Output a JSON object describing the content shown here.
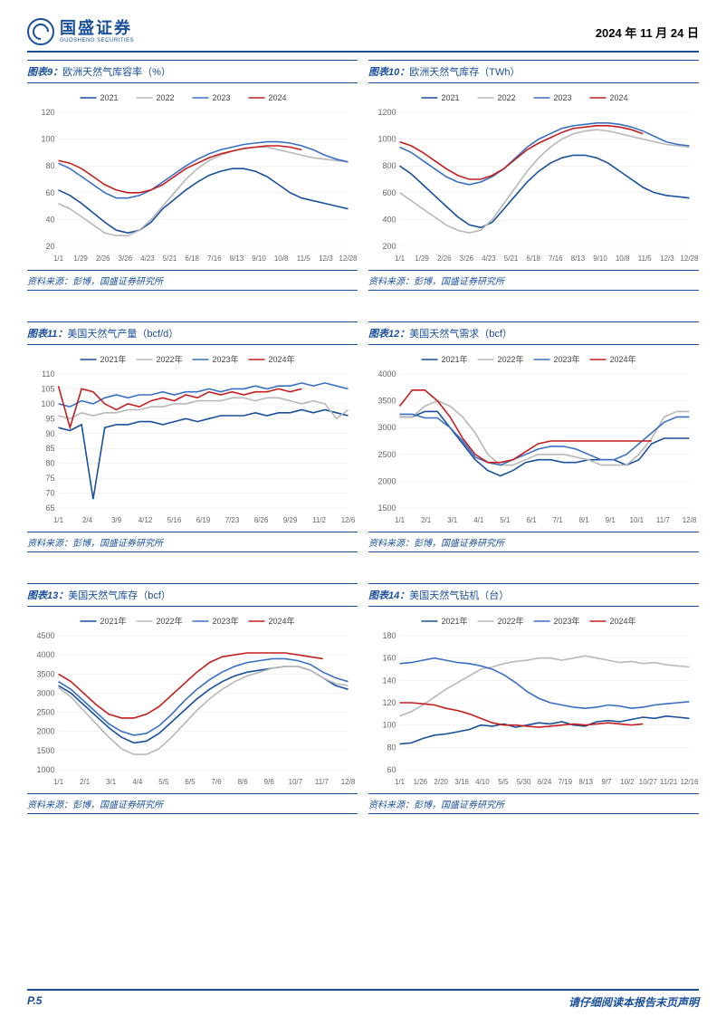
{
  "header": {
    "company_cn": "国盛证券",
    "company_en": "GUOSHENG SECURITIES",
    "date": "2024 年 11 月 24 日"
  },
  "colors": {
    "brand": "#1a4f9c",
    "c2021": "#1a4f9c",
    "c2022": "#b8b8b8",
    "c2023": "#3b6fc4",
    "c2024": "#c41e1e",
    "grid": "#e8e8e8",
    "axis": "#666666"
  },
  "source_text": "资料来源：彭博，国盛证券研究所",
  "charts": [
    {
      "id": "c9",
      "title_num": "图表9：",
      "title_rest": "欧洲天然气库容率（%）",
      "legend": [
        "2021",
        "2022",
        "2023",
        "2024"
      ],
      "ymin": 20,
      "ymax": 120,
      "ystep": 20,
      "xticks": [
        "1/1",
        "1/29",
        "2/26",
        "3/26",
        "4/23",
        "5/21",
        "6/18",
        "7/16",
        "8/13",
        "9/10",
        "10/8",
        "11/5",
        "12/3",
        "12/28"
      ],
      "series": {
        "2021": [
          62,
          58,
          52,
          45,
          38,
          32,
          30,
          32,
          38,
          48,
          55,
          62,
          68,
          73,
          76,
          78,
          78,
          76,
          72,
          66,
          60,
          56,
          54,
          52,
          50,
          48
        ],
        "2022": [
          52,
          48,
          42,
          36,
          30,
          28,
          28,
          32,
          40,
          50,
          60,
          70,
          78,
          84,
          88,
          91,
          93,
          94,
          94,
          92,
          90,
          88,
          86,
          85,
          84,
          83
        ],
        "2023": [
          82,
          78,
          72,
          66,
          60,
          56,
          56,
          58,
          62,
          68,
          74,
          80,
          85,
          89,
          92,
          94,
          96,
          97,
          98,
          98,
          97,
          95,
          92,
          88,
          85,
          83
        ],
        "2024": [
          84,
          82,
          78,
          72,
          66,
          62,
          60,
          60,
          62,
          66,
          72,
          78,
          82,
          86,
          89,
          91,
          93,
          94,
          95,
          95,
          94,
          92
        ]
      }
    },
    {
      "id": "c10",
      "title_num": "图表10：",
      "title_rest": "欧洲天然气库存（TWh）",
      "legend": [
        "2021",
        "2022",
        "2023",
        "2024"
      ],
      "ymin": 200,
      "ymax": 1200,
      "ystep": 200,
      "xticks": [
        "1/1",
        "1/29",
        "2/26",
        "3/26",
        "4/23",
        "5/21",
        "6/18",
        "7/16",
        "8/13",
        "9/10",
        "10/8",
        "11/5",
        "12/3",
        "12/28"
      ],
      "series": {
        "2021": [
          800,
          740,
          660,
          580,
          500,
          420,
          360,
          340,
          380,
          480,
          580,
          680,
          760,
          820,
          860,
          880,
          880,
          860,
          820,
          760,
          700,
          640,
          600,
          580,
          570,
          560
        ],
        "2022": [
          600,
          540,
          480,
          420,
          360,
          320,
          300,
          320,
          400,
          520,
          640,
          760,
          860,
          940,
          1000,
          1040,
          1060,
          1070,
          1060,
          1040,
          1020,
          1000,
          980,
          960,
          950,
          940
        ],
        "2023": [
          940,
          900,
          840,
          780,
          720,
          680,
          660,
          680,
          720,
          780,
          860,
          940,
          1000,
          1040,
          1080,
          1100,
          1110,
          1120,
          1120,
          1110,
          1090,
          1060,
          1020,
          980,
          960,
          950
        ],
        "2024": [
          980,
          950,
          900,
          840,
          780,
          730,
          700,
          700,
          730,
          780,
          850,
          920,
          970,
          1010,
          1050,
          1080,
          1090,
          1100,
          1100,
          1090,
          1070,
          1040
        ]
      }
    },
    {
      "id": "c11",
      "title_num": "图表11：",
      "title_rest": "美国天然气产量（bcf/d）",
      "legend": [
        "2021年",
        "2022年",
        "2023年",
        "2024年"
      ],
      "ymin": 65,
      "ymax": 110,
      "ystep": 5,
      "xticks": [
        "1/1",
        "2/4",
        "3/9",
        "4/12",
        "5/16",
        "6/19",
        "7/23",
        "8/26",
        "9/29",
        "11/2",
        "12/6"
      ],
      "series": {
        "2021": [
          92,
          91,
          93,
          68,
          92,
          93,
          93,
          94,
          94,
          93,
          94,
          95,
          94,
          95,
          96,
          96,
          96,
          97,
          96,
          97,
          97,
          98,
          97,
          98,
          97,
          96
        ],
        "2022": [
          96,
          95,
          97,
          96,
          97,
          97,
          98,
          98,
          99,
          99,
          100,
          100,
          101,
          101,
          101,
          102,
          102,
          101,
          102,
          102,
          101,
          100,
          101,
          100,
          95,
          98
        ],
        "2023": [
          100,
          99,
          101,
          100,
          102,
          103,
          102,
          103,
          103,
          104,
          103,
          104,
          104,
          105,
          104,
          105,
          105,
          106,
          105,
          106,
          106,
          107,
          106,
          107,
          106,
          105
        ],
        "2024": [
          106,
          92,
          105,
          104,
          100,
          98,
          100,
          99,
          101,
          102,
          101,
          103,
          102,
          104,
          103,
          104,
          103,
          104,
          104,
          105,
          104,
          105
        ]
      }
    },
    {
      "id": "c12",
      "title_num": "图表12：",
      "title_rest": "美国天然气需求（bcf）",
      "legend": [
        "2021年",
        "2022年",
        "2023年",
        "2024年"
      ],
      "ymin": 1500,
      "ymax": 4000,
      "ystep": 500,
      "xticks": [
        "1/1",
        "2/1",
        "3/1",
        "4/1",
        "5/1",
        "6/1",
        "7/1",
        "8/1",
        "9/1",
        "10/1",
        "11/7",
        "12/8"
      ],
      "series": {
        "2021": [
          3200,
          3200,
          3300,
          3300,
          3000,
          2700,
          2400,
          2200,
          2100,
          2200,
          2350,
          2400,
          2400,
          2350,
          2350,
          2400,
          2400,
          2400,
          2300,
          2400,
          2700,
          2800,
          2800,
          2800
        ],
        "2022": [
          3200,
          3200,
          3400,
          3500,
          3400,
          3200,
          2900,
          2500,
          2300,
          2300,
          2400,
          2500,
          2500,
          2500,
          2450,
          2400,
          2300,
          2300,
          2300,
          2500,
          2800,
          3200,
          3300,
          3300
        ],
        "2023": [
          3250,
          3250,
          3180,
          3180,
          3000,
          2750,
          2450,
          2350,
          2300,
          2400,
          2500,
          2600,
          2650,
          2650,
          2600,
          2500,
          2400,
          2400,
          2500,
          2700,
          2900,
          3100,
          3200,
          3200
        ],
        "2024": [
          3400,
          3700,
          3700,
          3500,
          3200,
          2800,
          2500,
          2350,
          2350,
          2400,
          2550,
          2700,
          2750,
          2750,
          2750,
          2750,
          2750,
          2750,
          2750,
          2750,
          2750
        ]
      }
    },
    {
      "id": "c13",
      "title_num": "图表13：",
      "title_rest": "美国天然气库存（bcf）",
      "legend": [
        "2021年",
        "2022年",
        "2023年",
        "2024年"
      ],
      "ymin": 1000,
      "ymax": 4500,
      "ystep": 500,
      "xticks": [
        "1/1",
        "2/1",
        "3/1",
        "4/4",
        "5/5",
        "6/5",
        "7/6",
        "8/6",
        "9/6",
        "10/7",
        "11/7",
        "12/8"
      ],
      "series": {
        "2021": [
          3200,
          3000,
          2700,
          2400,
          2100,
          1850,
          1700,
          1750,
          1950,
          2250,
          2550,
          2850,
          3100,
          3300,
          3450,
          3550,
          3600,
          3650,
          3700,
          3700,
          3600,
          3400,
          3200,
          3100
        ],
        "2022": [
          3150,
          2900,
          2550,
          2200,
          1850,
          1550,
          1400,
          1400,
          1550,
          1850,
          2200,
          2550,
          2850,
          3100,
          3300,
          3450,
          3550,
          3650,
          3700,
          3700,
          3600,
          3400,
          3250,
          3200
        ],
        "2023": [
          3300,
          3100,
          2800,
          2500,
          2200,
          2000,
          1900,
          1950,
          2150,
          2450,
          2800,
          3100,
          3350,
          3550,
          3700,
          3800,
          3850,
          3900,
          3900,
          3850,
          3750,
          3550,
          3400,
          3300
        ],
        "2024": [
          3500,
          3300,
          3000,
          2700,
          2450,
          2350,
          2350,
          2450,
          2650,
          2950,
          3250,
          3550,
          3800,
          3950,
          4000,
          4050,
          4050,
          4050,
          4050,
          4000,
          3950,
          3900
        ]
      }
    },
    {
      "id": "c14",
      "title_num": "图表14：",
      "title_rest": "美国天然气钻机（台）",
      "legend": [
        "2021年",
        "2022年",
        "2023年",
        "2024年"
      ],
      "ymin": 60,
      "ymax": 180,
      "ystep": 20,
      "xticks": [
        "1/1",
        "1/26",
        "2/20",
        "3/16",
        "4/10",
        "5/5",
        "5/30",
        "6/24",
        "7/19",
        "8/13",
        "9/7",
        "10/2",
        "10/27",
        "11/21",
        "12/16"
      ],
      "series": {
        "2021": [
          83,
          84,
          88,
          91,
          92,
          94,
          96,
          100,
          99,
          101,
          98,
          100,
          102,
          101,
          103,
          100,
          99,
          103,
          104,
          103,
          105,
          107,
          106,
          108,
          107,
          106
        ],
        "2022": [
          108,
          112,
          118,
          125,
          132,
          138,
          144,
          150,
          152,
          155,
          157,
          158,
          160,
          160,
          158,
          160,
          162,
          160,
          158,
          156,
          157,
          155,
          156,
          154,
          153,
          152
        ],
        "2023": [
          155,
          156,
          158,
          160,
          158,
          156,
          155,
          153,
          150,
          145,
          138,
          130,
          124,
          120,
          118,
          116,
          115,
          116,
          118,
          117,
          115,
          116,
          118,
          119,
          120,
          121
        ],
        "2024": [
          120,
          120,
          119,
          118,
          115,
          113,
          110,
          106,
          102,
          100,
          100,
          99,
          98,
          99,
          100,
          101,
          100,
          101,
          102,
          101,
          100,
          101
        ]
      }
    }
  ],
  "footer": {
    "page": "P.5",
    "disclaimer": "请仔细阅读本报告末页声明"
  }
}
